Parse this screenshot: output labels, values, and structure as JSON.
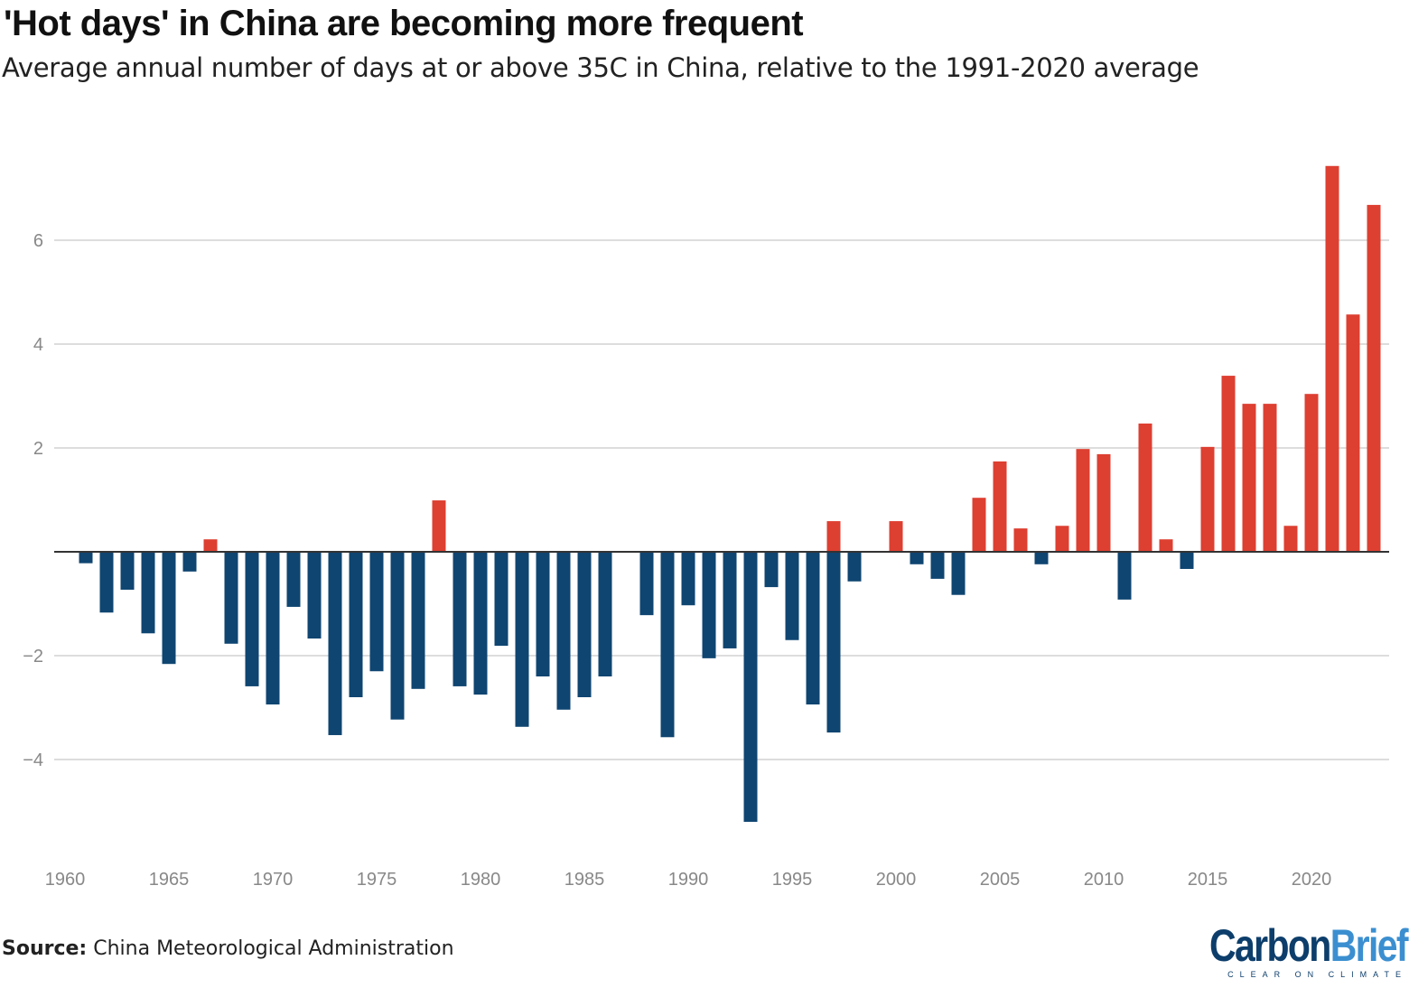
{
  "chart_data": {
    "type": "bar",
    "title": "'Hot days' in China are becoming more frequent",
    "subtitle": "Average annual number of days at or above 35C in China, relative to the 1991-2020 average",
    "xlabel": "",
    "ylabel": "",
    "xlim": [
      1960,
      2023
    ],
    "ylim": [
      -5.5,
      7.5
    ],
    "grid": true,
    "y_ticks": [
      6,
      4,
      2,
      -2,
      -4
    ],
    "x_ticks": [
      1960,
      1965,
      1970,
      1975,
      1980,
      1985,
      1990,
      1995,
      2000,
      2005,
      2010,
      2015,
      2020
    ],
    "colors": {
      "positive": "#dd3f31",
      "negative": "#0f4571",
      "zero_line": "#333333",
      "grid": "#dddddd"
    },
    "points": [
      {
        "year": 1961,
        "value": -0.22
      },
      {
        "year": 1962,
        "value": -1.17
      },
      {
        "year": 1963,
        "value": -0.73
      },
      {
        "year": 1964,
        "value": -1.57
      },
      {
        "year": 1965,
        "value": -2.16
      },
      {
        "year": 1966,
        "value": -0.38
      },
      {
        "year": 1967,
        "value": 0.24
      },
      {
        "year": 1968,
        "value": -1.77
      },
      {
        "year": 1969,
        "value": -2.59
      },
      {
        "year": 1970,
        "value": -2.94
      },
      {
        "year": 1971,
        "value": -1.06
      },
      {
        "year": 1972,
        "value": -1.67
      },
      {
        "year": 1973,
        "value": -3.53
      },
      {
        "year": 1974,
        "value": -2.8
      },
      {
        "year": 1975,
        "value": -2.3
      },
      {
        "year": 1976,
        "value": -3.23
      },
      {
        "year": 1977,
        "value": -2.64
      },
      {
        "year": 1978,
        "value": 0.99
      },
      {
        "year": 1979,
        "value": -2.59
      },
      {
        "year": 1980,
        "value": -2.75
      },
      {
        "year": 1981,
        "value": -1.81
      },
      {
        "year": 1982,
        "value": -3.37
      },
      {
        "year": 1983,
        "value": -2.4
      },
      {
        "year": 1984,
        "value": -3.04
      },
      {
        "year": 1985,
        "value": -2.8
      },
      {
        "year": 1986,
        "value": -2.4
      },
      {
        "year": 1988,
        "value": -1.22
      },
      {
        "year": 1989,
        "value": -3.57
      },
      {
        "year": 1990,
        "value": -1.03
      },
      {
        "year": 1991,
        "value": -2.05
      },
      {
        "year": 1992,
        "value": -1.86
      },
      {
        "year": 1993,
        "value": -5.2
      },
      {
        "year": 1994,
        "value": -0.68
      },
      {
        "year": 1995,
        "value": -1.7
      },
      {
        "year": 1996,
        "value": -2.94
      },
      {
        "year": 1997,
        "value": -3.48
      },
      {
        "year": 1997,
        "value": 0.59
      },
      {
        "year": 1998,
        "value": -0.57
      },
      {
        "year": 2000,
        "value": 0.59
      },
      {
        "year": 2001,
        "value": -0.24
      },
      {
        "year": 2002,
        "value": -0.52
      },
      {
        "year": 2003,
        "value": -0.83
      },
      {
        "year": 2004,
        "value": 1.04
      },
      {
        "year": 2005,
        "value": 1.74
      },
      {
        "year": 2006,
        "value": 0.45
      },
      {
        "year": 2007,
        "value": -0.24
      },
      {
        "year": 2008,
        "value": 0.5
      },
      {
        "year": 2009,
        "value": 1.98
      },
      {
        "year": 2010,
        "value": 1.88
      },
      {
        "year": 2011,
        "value": -0.92
      },
      {
        "year": 2012,
        "value": 2.47
      },
      {
        "year": 2013,
        "value": 0.24
      },
      {
        "year": 2014,
        "value": -0.33
      },
      {
        "year": 2015,
        "value": 2.02
      },
      {
        "year": 2016,
        "value": 3.39
      },
      {
        "year": 2017,
        "value": 2.85
      },
      {
        "year": 2018,
        "value": 2.85
      },
      {
        "year": 2019,
        "value": 0.5
      },
      {
        "year": 2020,
        "value": 3.04
      },
      {
        "year": 2021,
        "value": 7.43
      },
      {
        "year": 2022,
        "value": 4.57
      },
      {
        "year": 2023,
        "value": 6.68
      }
    ]
  },
  "footer": {
    "source_label": "Source:",
    "source_text": " China Meteorological Administration",
    "logo_part1": "Carbon",
    "logo_part2": "Brief",
    "logo_tagline": "CLEAR ON CLIMATE"
  }
}
